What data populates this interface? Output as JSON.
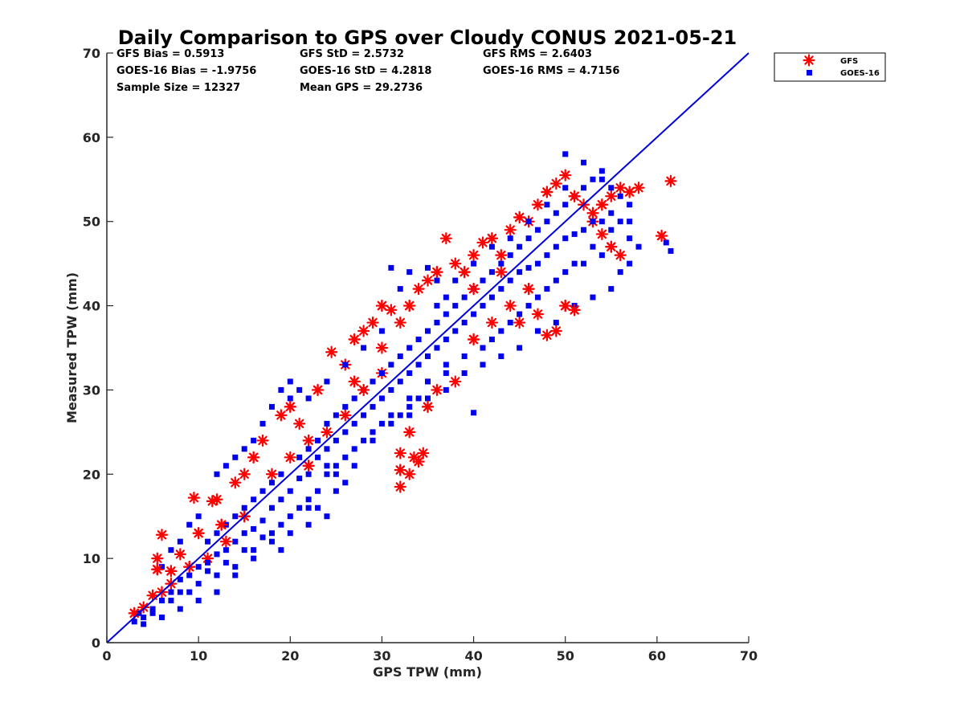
{
  "chart_data": {
    "type": "scatter",
    "title": "Daily Comparison to GPS over Cloudy CONUS 2021-05-21",
    "xlabel": "GPS TPW (mm)",
    "ylabel": "Measured TPW (mm)",
    "xlim": [
      0,
      70
    ],
    "ylim": [
      0,
      70
    ],
    "xticks": [
      "0",
      "10",
      "20",
      "30",
      "40",
      "50",
      "60",
      "70"
    ],
    "yticks": [
      "0",
      "10",
      "20",
      "30",
      "40",
      "50",
      "60",
      "70"
    ],
    "grid": false,
    "legend_position": "outside-top-right",
    "stats": [
      [
        "GFS Bias = 0.5913",
        "GFS StD = 2.5732",
        "GFS RMS = 2.6403"
      ],
      [
        "GOES-16 Bias = -1.9756",
        "GOES-16 StD = 4.2818",
        "GOES-16 RMS = 4.7156"
      ],
      [
        "Sample Size = 12327",
        "Mean GPS = 29.2736",
        ""
      ]
    ],
    "reference_line": {
      "x": [
        0,
        70
      ],
      "y": [
        0,
        70
      ],
      "color": "#0000dd"
    },
    "series": [
      {
        "name": "GFS",
        "marker": "asterisk",
        "color": "#ff0000",
        "points": [
          [
            3,
            3.5
          ],
          [
            4,
            4.2
          ],
          [
            5,
            5.6
          ],
          [
            5.5,
            8.7
          ],
          [
            5.5,
            10
          ],
          [
            6,
            12.8
          ],
          [
            7,
            8.5
          ],
          [
            8,
            10.5
          ],
          [
            9.5,
            17.2
          ],
          [
            10,
            13
          ],
          [
            11.5,
            16.8
          ],
          [
            12,
            17
          ],
          [
            12.5,
            14
          ],
          [
            14,
            19
          ],
          [
            15,
            20
          ],
          [
            16,
            22
          ],
          [
            17,
            24
          ],
          [
            19,
            27
          ],
          [
            20,
            28
          ],
          [
            21,
            26
          ],
          [
            22,
            24
          ],
          [
            23,
            30
          ],
          [
            24.5,
            34.5
          ],
          [
            26,
            33
          ],
          [
            27,
            36
          ],
          [
            28,
            37
          ],
          [
            29,
            38
          ],
          [
            30,
            40
          ],
          [
            31,
            39.5
          ],
          [
            32,
            38
          ],
          [
            33,
            40
          ],
          [
            34,
            42
          ],
          [
            35,
            43
          ],
          [
            36,
            44
          ],
          [
            37,
            48
          ],
          [
            38,
            45
          ],
          [
            39,
            44
          ],
          [
            40,
            46
          ],
          [
            41,
            47.5
          ],
          [
            42,
            48
          ],
          [
            43,
            46
          ],
          [
            44,
            49
          ],
          [
            45,
            50.5
          ],
          [
            46,
            50
          ],
          [
            47,
            52
          ],
          [
            48,
            53.5
          ],
          [
            49,
            54.5
          ],
          [
            50,
            55.5
          ],
          [
            51,
            53
          ],
          [
            52,
            52
          ],
          [
            53,
            51
          ],
          [
            54,
            52
          ],
          [
            55,
            53
          ],
          [
            56,
            54
          ],
          [
            57,
            53.5
          ],
          [
            58,
            54
          ],
          [
            56,
            46
          ],
          [
            55,
            47
          ],
          [
            54,
            48.5
          ],
          [
            53,
            50
          ],
          [
            50,
            40
          ],
          [
            49,
            37
          ],
          [
            48,
            36.5
          ],
          [
            51,
            39.5
          ],
          [
            47,
            39
          ],
          [
            32,
            18.5
          ],
          [
            32,
            20.5
          ],
          [
            33,
            20
          ],
          [
            33.5,
            22
          ],
          [
            34,
            21.5
          ],
          [
            34.5,
            22.5
          ],
          [
            33,
            25
          ],
          [
            60.5,
            48.3
          ],
          [
            61.5,
            54.8
          ],
          [
            32,
            22.5
          ],
          [
            35,
            28
          ],
          [
            36,
            30
          ],
          [
            38,
            31
          ],
          [
            40,
            36
          ],
          [
            42,
            38
          ],
          [
            44,
            40
          ],
          [
            46,
            42
          ],
          [
            45,
            38
          ],
          [
            30,
            32
          ],
          [
            28,
            30
          ],
          [
            26,
            27
          ],
          [
            24,
            25
          ],
          [
            22,
            21
          ],
          [
            18,
            20
          ],
          [
            20,
            22
          ],
          [
            15,
            15
          ],
          [
            13,
            12
          ],
          [
            11,
            10
          ],
          [
            9,
            9
          ],
          [
            7,
            7
          ],
          [
            6,
            6
          ],
          [
            40,
            42
          ],
          [
            43,
            44
          ],
          [
            30,
            35
          ],
          [
            27,
            31
          ]
        ]
      },
      {
        "name": "GOES-16",
        "marker": "square",
        "color": "#0000ee",
        "points": [
          [
            3,
            2.5
          ],
          [
            4,
            3
          ],
          [
            5,
            4
          ],
          [
            6,
            5
          ],
          [
            7,
            6
          ],
          [
            8,
            7.5
          ],
          [
            9,
            8
          ],
          [
            10,
            9
          ],
          [
            11,
            9.5
          ],
          [
            12,
            10.5
          ],
          [
            13,
            11
          ],
          [
            14,
            12
          ],
          [
            15,
            13
          ],
          [
            16,
            13.5
          ],
          [
            17,
            14.5
          ],
          [
            18,
            16
          ],
          [
            19,
            17
          ],
          [
            20,
            18
          ],
          [
            21,
            19.5
          ],
          [
            22,
            20
          ],
          [
            23,
            22
          ],
          [
            24,
            23
          ],
          [
            25,
            24
          ],
          [
            26,
            25
          ],
          [
            27,
            26
          ],
          [
            28,
            27
          ],
          [
            29,
            28
          ],
          [
            30,
            29
          ],
          [
            31,
            30
          ],
          [
            32,
            31
          ],
          [
            33,
            32
          ],
          [
            34,
            33
          ],
          [
            35,
            34
          ],
          [
            36,
            35
          ],
          [
            37,
            36
          ],
          [
            38,
            37
          ],
          [
            39,
            38
          ],
          [
            40,
            39
          ],
          [
            41,
            40
          ],
          [
            42,
            41
          ],
          [
            43,
            42
          ],
          [
            44,
            43
          ],
          [
            45,
            44
          ],
          [
            46,
            44.5
          ],
          [
            47,
            45
          ],
          [
            48,
            46
          ],
          [
            49,
            47
          ],
          [
            50,
            48
          ],
          [
            51,
            48.5
          ],
          [
            52,
            49
          ],
          [
            53,
            50
          ],
          [
            54,
            50
          ],
          [
            55,
            51
          ],
          [
            56,
            50
          ],
          [
            57,
            48
          ],
          [
            58,
            47
          ],
          [
            61.5,
            46.5
          ],
          [
            61,
            47.5
          ],
          [
            50,
            58
          ],
          [
            52,
            57
          ],
          [
            54,
            56
          ],
          [
            31,
            44.5
          ],
          [
            33,
            44
          ],
          [
            32,
            42
          ],
          [
            35,
            44.5
          ],
          [
            36,
            43
          ],
          [
            37,
            41
          ],
          [
            40,
            27.3
          ],
          [
            37,
            30
          ],
          [
            35,
            31
          ],
          [
            34,
            29
          ],
          [
            33,
            28
          ],
          [
            32,
            27
          ],
          [
            30,
            26
          ],
          [
            28,
            24
          ],
          [
            26,
            22
          ],
          [
            24,
            20
          ],
          [
            22,
            17
          ],
          [
            20,
            15
          ],
          [
            18,
            12
          ],
          [
            16,
            10
          ],
          [
            14,
            8
          ],
          [
            12,
            6
          ],
          [
            10,
            5
          ],
          [
            8,
            4
          ],
          [
            6,
            3
          ],
          [
            22,
            14
          ],
          [
            23,
            16
          ],
          [
            24,
            15
          ],
          [
            25,
            18
          ],
          [
            20,
            31
          ],
          [
            19,
            30
          ],
          [
            18,
            28
          ],
          [
            17,
            26
          ],
          [
            16,
            24
          ],
          [
            15,
            23
          ],
          [
            14,
            22
          ],
          [
            13,
            21
          ],
          [
            12,
            20
          ],
          [
            10,
            15
          ],
          [
            9,
            14
          ],
          [
            8,
            12
          ],
          [
            7,
            11
          ],
          [
            6,
            9
          ],
          [
            11,
            12
          ],
          [
            12,
            13
          ],
          [
            13,
            14
          ],
          [
            14,
            15
          ],
          [
            15,
            16
          ],
          [
            16,
            17
          ],
          [
            17,
            18
          ],
          [
            18,
            19
          ],
          [
            19,
            20
          ],
          [
            21,
            22
          ],
          [
            22,
            23
          ],
          [
            23,
            24
          ],
          [
            24,
            26
          ],
          [
            25,
            27
          ],
          [
            26,
            28
          ],
          [
            27,
            29
          ],
          [
            28,
            30
          ],
          [
            29,
            31
          ],
          [
            30,
            32
          ],
          [
            31,
            33
          ],
          [
            32,
            34
          ],
          [
            33,
            35
          ],
          [
            34,
            36
          ],
          [
            35,
            37
          ],
          [
            36,
            38
          ],
          [
            37,
            39
          ],
          [
            38,
            40
          ],
          [
            39,
            41
          ],
          [
            40,
            42
          ],
          [
            41,
            43
          ],
          [
            42,
            44
          ],
          [
            43,
            45
          ],
          [
            44,
            46
          ],
          [
            45,
            47
          ],
          [
            46,
            48
          ],
          [
            47,
            49
          ],
          [
            48,
            50
          ],
          [
            49,
            51
          ],
          [
            50,
            52
          ],
          [
            51,
            53
          ],
          [
            52,
            54
          ],
          [
            53,
            55
          ],
          [
            54,
            55
          ],
          [
            55,
            54
          ],
          [
            56,
            53
          ],
          [
            57,
            52
          ],
          [
            42,
            36
          ],
          [
            44,
            38
          ],
          [
            46,
            40
          ],
          [
            48,
            42
          ],
          [
            50,
            44
          ],
          [
            52,
            45
          ],
          [
            54,
            46
          ],
          [
            56,
            44
          ],
          [
            57,
            45
          ],
          [
            55,
            42
          ],
          [
            53,
            41
          ],
          [
            51,
            40
          ],
          [
            49,
            38
          ],
          [
            47,
            37
          ],
          [
            45,
            35
          ],
          [
            43,
            34
          ],
          [
            41,
            33
          ],
          [
            39,
            32
          ],
          [
            37,
            33
          ],
          [
            35,
            29
          ],
          [
            25,
            20
          ],
          [
            27,
            21
          ],
          [
            29,
            24
          ],
          [
            31,
            26
          ],
          [
            33,
            27
          ],
          [
            26,
            19
          ],
          [
            24,
            21
          ],
          [
            20,
            13
          ],
          [
            22,
            16
          ],
          [
            19,
            11
          ],
          [
            10,
            7
          ],
          [
            12,
            8
          ],
          [
            14,
            9
          ],
          [
            16,
            11
          ],
          [
            18,
            13
          ],
          [
            9,
            6
          ],
          [
            7,
            5
          ],
          [
            5,
            3.5
          ],
          [
            4,
            2.2
          ],
          [
            3.5,
            3.5
          ],
          [
            8,
            6
          ],
          [
            11,
            8.5
          ],
          [
            13,
            9.5
          ],
          [
            15,
            11
          ],
          [
            17,
            12.5
          ],
          [
            19,
            14
          ],
          [
            21,
            16
          ],
          [
            23,
            18
          ],
          [
            25,
            21
          ],
          [
            27,
            23
          ],
          [
            29,
            25
          ],
          [
            31,
            27
          ],
          [
            33,
            29
          ],
          [
            35,
            31
          ],
          [
            37,
            32
          ],
          [
            39,
            34
          ],
          [
            41,
            35
          ],
          [
            43,
            37
          ],
          [
            45,
            39
          ],
          [
            47,
            41
          ],
          [
            49,
            43
          ],
          [
            51,
            45
          ],
          [
            53,
            47
          ],
          [
            55,
            49
          ],
          [
            57,
            50
          ],
          [
            36,
            40
          ],
          [
            38,
            43
          ],
          [
            40,
            45
          ],
          [
            42,
            47
          ],
          [
            44,
            48
          ],
          [
            46,
            50
          ],
          [
            48,
            52
          ],
          [
            50,
            54
          ],
          [
            30,
            37
          ],
          [
            28,
            35
          ],
          [
            26,
            33
          ],
          [
            24,
            31
          ],
          [
            22,
            29
          ],
          [
            21,
            30
          ],
          [
            20,
            29
          ]
        ]
      }
    ]
  }
}
